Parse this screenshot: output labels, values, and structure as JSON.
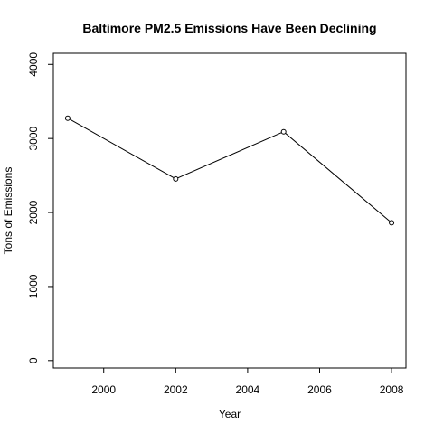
{
  "chart_data": {
    "type": "line",
    "title": "Baltimore PM2.5 Emissions Have Been Declining",
    "xlabel": "Year",
    "ylabel": "Tons of Emissions",
    "x": [
      1999,
      2002,
      2005,
      2008
    ],
    "series": [
      {
        "values": [
          3274,
          2454,
          3091,
          1862
        ]
      }
    ],
    "xlim": [
      1998.6,
      2008.4
    ],
    "ylim": [
      -100,
      4150
    ],
    "xticks": [
      "2000",
      "2002",
      "2004",
      "2006",
      "2008"
    ],
    "yticks": [
      "0",
      "1000",
      "2000",
      "3000",
      "4000"
    ],
    "markers": "open-circle",
    "line_color": "#000000",
    "grid": false,
    "legend": "none"
  }
}
